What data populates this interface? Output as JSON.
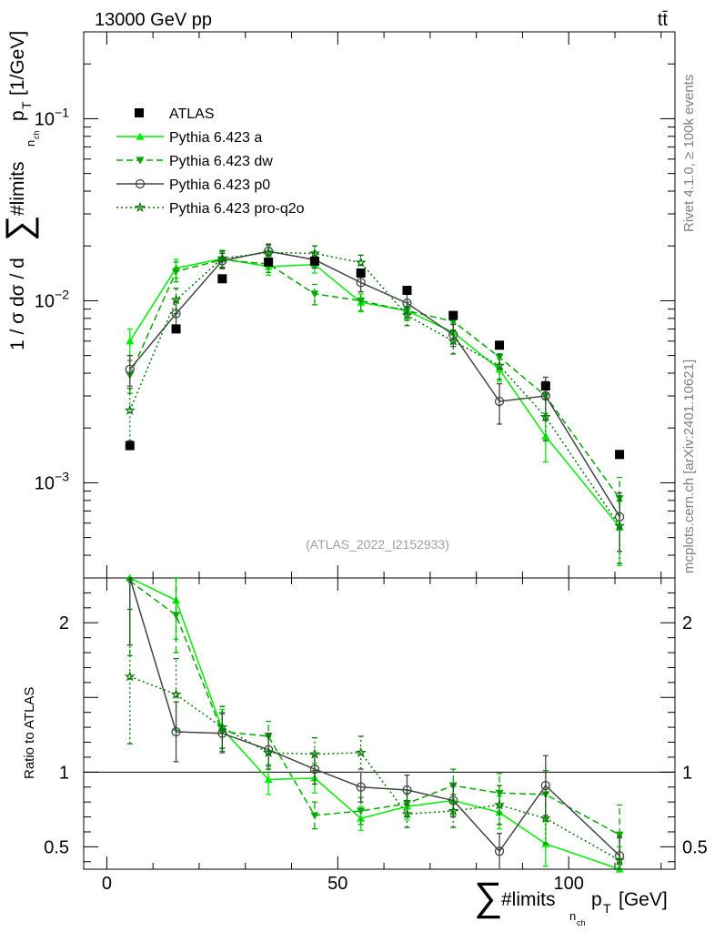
{
  "header": {
    "left": "13000 GeV pp",
    "right": "tt̄"
  },
  "side_labels": {
    "right_top": "Rivet 4.1.0, ≥ 100k events",
    "right_bottom": "mcplots.cern.ch [arXiv:2401.10621]"
  },
  "chart_data": {
    "type": "line",
    "title": "",
    "analysis_label": "(ATLAS_2022_I2152933)",
    "xlabel": "∑#limits p_T [GeV]",
    "xlabel_parts": {
      "sum": "∑",
      "limits": "#limits",
      "sub": "n",
      "subsub": "ch",
      "p": "p",
      "psub": "T",
      "unit": "[GeV]"
    },
    "ylabel": "1 / σ dσ / d ∑#limits p_T [1/GeV]",
    "ylabel_parts": {
      "left": "1 / σ dσ / d",
      "sum": "∑",
      "limits": "#limits",
      "sub": "n",
      "subsub": "ch",
      "p": "p",
      "psub": "T",
      "unit": "[1/GeV]"
    },
    "ratio_ylabel": "Ratio to ATLAS",
    "xlim": [
      -5,
      123
    ],
    "ylim": [
      0.0003,
      0.3
    ],
    "yscale": "log",
    "ratio_ylim": [
      0.35,
      2.3
    ],
    "x_ticks": [
      0,
      50,
      100
    ],
    "x_tick_labels": [
      "0",
      "50",
      "100"
    ],
    "y_ticks": [
      0.001,
      0.01,
      0.1
    ],
    "y_tick_labels": [
      {
        "base": "10",
        "exp": "−3"
      },
      {
        "base": "10",
        "exp": "−2"
      },
      {
        "base": "10",
        "exp": "−1"
      }
    ],
    "ratio_ticks": [
      0.5,
      1,
      2
    ],
    "ratio_tick_labels": [
      "0.5",
      "1",
      "2"
    ],
    "legend_position": "top-left",
    "x": [
      5,
      15,
      25,
      35,
      45,
      55,
      65,
      75,
      85,
      95,
      111
    ],
    "data": {
      "name": "ATLAS",
      "values": [
        0.0016,
        0.007,
        0.0132,
        0.0163,
        0.0165,
        0.0142,
        0.0114,
        0.0083,
        0.0057,
        0.0034,
        0.00143
      ]
    },
    "series": [
      {
        "name": "Pythia 6.423 a",
        "color": "#00ee00",
        "dash": "",
        "marker": "triangle-up",
        "values": [
          0.006,
          0.0151,
          0.017,
          0.0154,
          0.0158,
          0.0098,
          0.0088,
          0.0067,
          0.0042,
          0.0018,
          0.00057
        ],
        "errors": [
          0.001,
          0.0018,
          0.0018,
          0.0016,
          0.0016,
          0.0011,
          0.001,
          0.0008,
          0.0006,
          0.0005,
          0.00022
        ],
        "ratio": [
          2.3,
          2.15,
          1.29,
          0.95,
          0.96,
          0.69,
          0.77,
          0.81,
          0.73,
          0.52,
          0.35
        ],
        "ratio_err": [
          0.45,
          0.26,
          0.13,
          0.1,
          0.1,
          0.08,
          0.09,
          0.1,
          0.11,
          0.15,
          0.15
        ]
      },
      {
        "name": "Pythia 6.423 dw",
        "color": "#00aa00",
        "dash": "7,4",
        "marker": "triangle-down",
        "values": [
          0.0039,
          0.0145,
          0.0168,
          0.0159,
          0.0109,
          0.01,
          0.0088,
          0.0077,
          0.0049,
          0.003,
          0.00082
        ],
        "errors": [
          0.0008,
          0.0018,
          0.0018,
          0.0016,
          0.0014,
          0.0012,
          0.001,
          0.0009,
          0.0007,
          0.0006,
          0.00025
        ],
        "ratio": [
          2.28,
          2.05,
          1.27,
          1.24,
          0.71,
          0.74,
          0.79,
          0.91,
          0.86,
          0.85,
          0.58
        ],
        "ratio_err": [
          0.5,
          0.25,
          0.13,
          0.1,
          0.09,
          0.09,
          0.09,
          0.11,
          0.13,
          0.16,
          0.2
        ]
      },
      {
        "name": "Pythia 6.423 p0",
        "color": "#444444",
        "dash": "",
        "marker": "circle-open",
        "values": [
          0.0042,
          0.0085,
          0.0166,
          0.0187,
          0.0168,
          0.0126,
          0.0097,
          0.0065,
          0.0028,
          0.003,
          0.00065
        ],
        "errors": [
          0.0008,
          0.0014,
          0.0016,
          0.0018,
          0.0017,
          0.0014,
          0.0012,
          0.0009,
          0.0007,
          0.0008,
          0.00023
        ],
        "ratio": [
          2.35,
          1.27,
          1.26,
          1.15,
          1.02,
          0.9,
          0.88,
          0.81,
          0.47,
          0.91,
          0.44
        ],
        "ratio_err": [
          0.5,
          0.2,
          0.13,
          0.11,
          0.1,
          0.1,
          0.1,
          0.11,
          0.12,
          0.2,
          0.13
        ]
      },
      {
        "name": "Pythia 6.423 pro-q2o",
        "color": "#007700",
        "dash": "2,3",
        "marker": "star",
        "values": [
          0.0025,
          0.0101,
          0.0171,
          0.0184,
          0.0182,
          0.0162,
          0.0083,
          0.006,
          0.0044,
          0.0023,
          0.00058
        ],
        "errors": [
          0.0008,
          0.0016,
          0.0018,
          0.0018,
          0.0018,
          0.0016,
          0.001,
          0.0009,
          0.0007,
          0.0006,
          0.00022
        ],
        "ratio": [
          1.64,
          1.52,
          1.3,
          1.13,
          1.12,
          1.13,
          0.72,
          0.74,
          0.78,
          0.69,
          0.41
        ],
        "ratio_err": [
          0.45,
          0.24,
          0.14,
          0.11,
          0.11,
          0.11,
          0.09,
          0.11,
          0.13,
          0.17,
          0.15
        ]
      }
    ]
  }
}
